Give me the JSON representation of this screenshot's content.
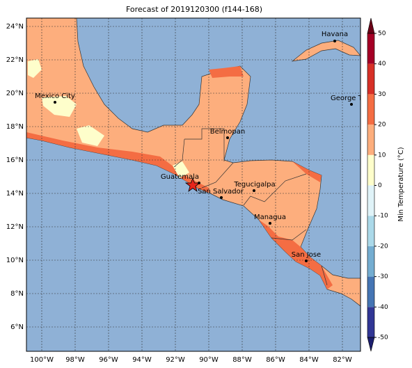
{
  "title": "Forecast of 2019120300 (f144-168)",
  "map": {
    "lat_labels": [
      "24°N",
      "22°N",
      "20°N",
      "18°N",
      "16°N",
      "14°N",
      "12°N",
      "10°N",
      "8°N",
      "6°N"
    ],
    "lon_labels": [
      "100°W",
      "98°W",
      "96°W",
      "94°W",
      "92°W",
      "90°W",
      "88°W",
      "86°W",
      "84°W",
      "82°W"
    ],
    "cities": [
      "Havana",
      "Mexico City",
      "George Town",
      "Belmopan",
      "Guatemala",
      "San Salvador",
      "Tegucigalpa",
      "Managua",
      "San Jose"
    ]
  },
  "colorbar": {
    "label": "Min Temperature (°C)",
    "lim": [
      -50,
      50
    ],
    "ticks": [
      -50,
      -40,
      -30,
      -20,
      -10,
      0,
      10,
      20,
      30,
      40,
      50
    ],
    "colors": [
      "#313695",
      "#4575b4",
      "#74add1",
      "#abd9e9",
      "#e0f3f8",
      "#fefecb",
      "#fdae7d",
      "#f46d43",
      "#d73027",
      "#a50026"
    ],
    "extend_colors": [
      "#1b1e6e",
      "#6b0016"
    ]
  }
}
